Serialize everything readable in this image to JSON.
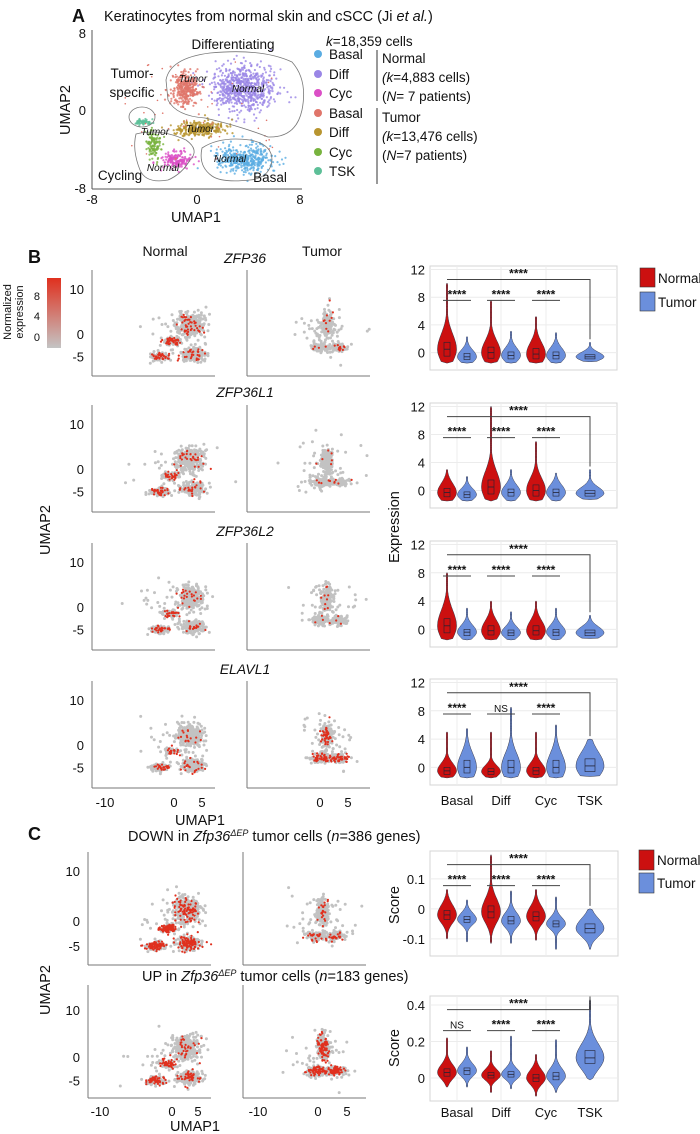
{
  "panel_a": {
    "letter": "A",
    "title": {
      "pre": "Keratinocytes from normal skin and cSCC (Ji ",
      "italic": "et al.",
      "post": ")"
    },
    "xlabel": "UMAP1",
    "ylabel": "UMAP2",
    "x_ticks": [
      "-8",
      "0",
      "8"
    ],
    "y_ticks": [
      "8",
      "0",
      "-8"
    ],
    "region_labels": {
      "differentiating": "Differentiating",
      "tumor_specific_1": "Tumor-",
      "tumor_specific_2": "specific",
      "cycling": "Cycling",
      "basal": "Basal"
    },
    "cluster_labels": {
      "tumor": "Tumor",
      "normal": "Normal"
    },
    "total_cells": {
      "var": "k",
      "value": "=18,359 cells"
    },
    "legend": [
      {
        "label": "Basal",
        "color": "#5aace2"
      },
      {
        "label": "Diff",
        "color": "#9a86e6"
      },
      {
        "label": "Cyc",
        "color": "#db4fc6"
      },
      {
        "label": "Basal",
        "color": "#e0756a"
      },
      {
        "label": "Diff",
        "color": "#b89530"
      },
      {
        "label": "Cyc",
        "color": "#78b33e"
      },
      {
        "label": "TSK",
        "color": "#5dbf98"
      }
    ],
    "groups": [
      {
        "name": "Normal",
        "cells_open": "(",
        "cells_var": "k",
        "cells_value": "=4,883 cells)",
        "patients_open": "(",
        "patients_var": "N",
        "patients_value": "= 7 patients)"
      },
      {
        "name": "Tumor",
        "cells_open": "(",
        "cells_var": "k",
        "cells_value": "=13,476 cells)",
        "patients_open": "(",
        "patients_var": "N",
        "patients_value": "=7 patients)"
      }
    ]
  },
  "panel_b": {
    "letter": "B",
    "col_normal": "Normal",
    "col_tumor": "Tumor",
    "colorbar": {
      "title_1": "Normalized",
      "title_2": "expression",
      "ticks": [
        "8",
        "4",
        "0"
      ],
      "low_color": "#c4c4c4",
      "high_color": "#e0301e"
    },
    "genes": [
      "ZFP36",
      "ZFP36L1",
      "ZFP36L2",
      "ELAVL1"
    ],
    "umap_y_ticks": [
      "10",
      "0",
      "-5"
    ],
    "umap_x_ticks_normal": [
      "-10",
      "0",
      "5"
    ],
    "umap_x_ticks_tumor": [
      "0",
      "5"
    ],
    "xlabel": "UMAP1",
    "ylabel": "UMAP2",
    "violin_ylabel": "Expression",
    "categories": [
      "Basal",
      "Diff",
      "Cyc",
      "TSK"
    ],
    "legend": [
      {
        "label": "Normal",
        "color": "#cc1010"
      },
      {
        "label": "Tumor",
        "color": "#6b8fdc"
      }
    ]
  },
  "panel_c": {
    "letter": "C",
    "down_title": {
      "pre": "DOWN in ",
      "gene": "Zfp36",
      "sup": "ΔEP",
      "mid": " tumor cells (",
      "var": "n",
      "post": "=386 genes)"
    },
    "up_title": {
      "pre": "UP in ",
      "gene": "Zfp36",
      "sup": "ΔEP",
      "mid": " tumor cells (",
      "var": "n",
      "post": "=183 genes)"
    },
    "umap_y_ticks": [
      "10",
      "0",
      "-5"
    ],
    "umap_x_ticks_normal": [
      "-10",
      "0",
      "5"
    ],
    "umap_x_ticks_tumor": [
      "-10",
      "0",
      "5"
    ],
    "xlabel": "UMAP1",
    "ylabel": "UMAP2",
    "violin_ylabel": "Score",
    "categories": [
      "Basal",
      "Diff",
      "Cyc",
      "TSK"
    ],
    "legend": [
      {
        "label": "Normal",
        "color": "#cc1010"
      },
      {
        "label": "Tumor",
        "color": "#6b8fdc"
      }
    ]
  },
  "chart_data": [
    {
      "type": "scatter",
      "panel": "A",
      "title": "Keratinocytes from normal skin and cSCC (Ji et al.)",
      "xlabel": "UMAP1",
      "ylabel": "UMAP2",
      "xlim": [
        -8,
        8
      ],
      "ylim": [
        -8,
        8
      ],
      "legend": "right",
      "series": [
        {
          "name": "Normal Basal",
          "color": "#5aace2"
        },
        {
          "name": "Normal Diff",
          "color": "#9a86e6"
        },
        {
          "name": "Normal Cyc",
          "color": "#db4fc6"
        },
        {
          "name": "Tumor Basal",
          "color": "#e0756a"
        },
        {
          "name": "Tumor Diff",
          "color": "#b89530"
        },
        {
          "name": "Tumor Cyc",
          "color": "#78b33e"
        },
        {
          "name": "Tumor TSK",
          "color": "#5dbf98"
        }
      ]
    },
    {
      "type": "violin",
      "panel": "B",
      "title": "ZFP36",
      "ylabel": "Expression",
      "ylim": [
        -2.5,
        12.5
      ],
      "yticks": [
        "0",
        "4",
        "8",
        "12"
      ],
      "categories": [
        "Basal",
        "Diff",
        "Cyc",
        "TSK"
      ],
      "series": [
        {
          "name": "Normal",
          "values": [
            {
              "median": 0.5,
              "q1": -0.5,
              "q3": 1.5,
              "min": -1.5,
              "max": 10
            },
            {
              "median": 0,
              "q1": -0.8,
              "q3": 0.8,
              "min": -1.5,
              "max": 7.5
            },
            {
              "median": -0.2,
              "q1": -0.9,
              "q3": 0.6,
              "min": -1.5,
              "max": 5.2
            },
            null
          ]
        },
        {
          "name": "Tumor",
          "values": [
            {
              "median": -0.6,
              "q1": -1,
              "q3": -0.1,
              "min": -1.5,
              "max": 2.3
            },
            {
              "median": -0.4,
              "q1": -0.9,
              "q3": 0.1,
              "min": -1.5,
              "max": 3.1
            },
            {
              "median": -0.4,
              "q1": -0.9,
              "q3": 0.1,
              "min": -1.5,
              "max": 2.9
            },
            {
              "median": -0.6,
              "q1": -0.9,
              "q3": -0.3,
              "min": -1.3,
              "max": 1.5
            }
          ]
        }
      ],
      "significance": {
        "pairs": [
          "****",
          "****",
          "****"
        ],
        "overall": "****"
      }
    },
    {
      "type": "violin",
      "panel": "B",
      "title": "ZFP36L1",
      "ylabel": "Expression",
      "ylim": [
        -2.5,
        12.5
      ],
      "yticks": [
        "0",
        "4",
        "8",
        "12"
      ],
      "categories": [
        "Basal",
        "Diff",
        "Cyc",
        "TSK"
      ],
      "series": [
        {
          "name": "Normal",
          "values": [
            {
              "median": -0.3,
              "q1": -0.9,
              "q3": 0.3,
              "min": -1.5,
              "max": 3
            },
            {
              "median": 0.5,
              "q1": -0.5,
              "q3": 1.5,
              "min": -1.5,
              "max": 12
            },
            {
              "median": 0,
              "q1": -0.8,
              "q3": 0.8,
              "min": -1.5,
              "max": 7
            },
            null
          ]
        },
        {
          "name": "Tumor",
          "values": [
            {
              "median": -0.6,
              "q1": -1,
              "q3": -0.2,
              "min": -1.5,
              "max": 2
            },
            {
              "median": -0.3,
              "q1": -0.8,
              "q3": 0.2,
              "min": -1.5,
              "max": 3
            },
            {
              "median": -0.3,
              "q1": -0.8,
              "q3": 0.2,
              "min": -1.5,
              "max": 2.5
            },
            {
              "median": -0.4,
              "q1": -0.8,
              "q3": 0,
              "min": -1.3,
              "max": 3
            }
          ]
        }
      ],
      "significance": {
        "pairs": [
          "****",
          "****",
          "****"
        ],
        "overall": "****"
      }
    },
    {
      "type": "violin",
      "panel": "B",
      "title": "ZFP36L2",
      "ylabel": "Expression",
      "ylim": [
        -2.5,
        12.5
      ],
      "yticks": [
        "0",
        "4",
        "8",
        "12"
      ],
      "categories": [
        "Basal",
        "Diff",
        "Cyc",
        "TSK"
      ],
      "series": [
        {
          "name": "Normal",
          "values": [
            {
              "median": 0.5,
              "q1": -0.5,
              "q3": 1.5,
              "min": -1.5,
              "max": 8
            },
            {
              "median": -0.2,
              "q1": -0.8,
              "q3": 0.5,
              "min": -1.5,
              "max": 4
            },
            {
              "median": -0.2,
              "q1": -0.8,
              "q3": 0.5,
              "min": -1.5,
              "max": 4
            },
            null
          ]
        },
        {
          "name": "Tumor",
          "values": [
            {
              "median": -0.4,
              "q1": -0.9,
              "q3": 0,
              "min": -1.5,
              "max": 3
            },
            {
              "median": -0.5,
              "q1": -0.9,
              "q3": -0.1,
              "min": -1.5,
              "max": 2.5
            },
            {
              "median": -0.4,
              "q1": -0.9,
              "q3": 0,
              "min": -1.5,
              "max": 3
            },
            {
              "median": -0.5,
              "q1": -0.9,
              "q3": -0.1,
              "min": -1.3,
              "max": 2
            }
          ]
        }
      ],
      "significance": {
        "pairs": [
          "****",
          "****",
          "****"
        ],
        "overall": "****"
      }
    },
    {
      "type": "violin",
      "panel": "B",
      "title": "ELAVL1",
      "ylabel": "Expression",
      "ylim": [
        -2.5,
        12.5
      ],
      "yticks": [
        "0",
        "4",
        "8",
        "12"
      ],
      "categories": [
        "Basal",
        "Diff",
        "Cyc",
        "TSK"
      ],
      "series": [
        {
          "name": "Normal",
          "values": [
            {
              "median": -0.5,
              "q1": -1,
              "q3": 0,
              "min": -1.5,
              "max": 5
            },
            {
              "median": -0.6,
              "q1": -1,
              "q3": -0.2,
              "min": -1.5,
              "max": 5
            },
            {
              "median": -0.5,
              "q1": -1,
              "q3": 0,
              "min": -1.5,
              "max": 5
            },
            null
          ]
        },
        {
          "name": "Tumor",
          "values": [
            {
              "median": 0,
              "q1": -0.8,
              "q3": 1,
              "min": -1.5,
              "max": 5.5
            },
            {
              "median": 0,
              "q1": -0.8,
              "q3": 1,
              "min": -1.5,
              "max": 8.5
            },
            {
              "median": 0,
              "q1": -0.8,
              "q3": 1,
              "min": -1.5,
              "max": 6
            },
            {
              "median": 0.2,
              "q1": -0.6,
              "q3": 1.2,
              "min": -1.3,
              "max": 4
            }
          ]
        }
      ],
      "significance": {
        "pairs": [
          "****",
          "NS",
          "****"
        ],
        "overall": "****"
      }
    },
    {
      "type": "violin",
      "panel": "C",
      "title": "DOWN in Zfp36ΔEP tumor cells (n=386 genes)",
      "ylabel": "Score",
      "ylim": [
        -0.157,
        0.193
      ],
      "yticks": [
        "-0.1",
        "0",
        "0.1"
      ],
      "categories": [
        "Basal",
        "Diff",
        "Cyc",
        "TSK"
      ],
      "series": [
        {
          "name": "Normal",
          "values": [
            {
              "median": -0.02,
              "q1": -0.035,
              "q3": -0.005,
              "min": -0.1,
              "max": 0.065
            },
            {
              "median": -0.01,
              "q1": -0.03,
              "q3": 0.01,
              "min": -0.115,
              "max": 0.18
            },
            {
              "median": -0.025,
              "q1": -0.04,
              "q3": -0.01,
              "min": -0.105,
              "max": 0.065
            },
            null
          ]
        },
        {
          "name": "Tumor",
          "values": [
            {
              "median": -0.035,
              "q1": -0.045,
              "q3": -0.025,
              "min": -0.11,
              "max": 0.03
            },
            {
              "median": -0.04,
              "q1": -0.05,
              "q3": -0.025,
              "min": -0.115,
              "max": 0.06
            },
            {
              "median": -0.05,
              "q1": -0.06,
              "q3": -0.04,
              "min": -0.135,
              "max": 0.04
            },
            {
              "median": -0.065,
              "q1": -0.08,
              "q3": -0.05,
              "min": -0.135,
              "max": 0.0
            }
          ]
        }
      ],
      "significance": {
        "pairs": [
          "****",
          "****",
          "****"
        ],
        "overall": "****"
      }
    },
    {
      "type": "violin",
      "panel": "C",
      "title": "UP in Zfp36ΔEP tumor cells (n=183 genes)",
      "ylabel": "Score",
      "ylim": [
        -0.126,
        0.449
      ],
      "yticks": [
        "0",
        "0.2",
        "0.4"
      ],
      "categories": [
        "Basal",
        "Diff",
        "Cyc",
        "TSK"
      ],
      "series": [
        {
          "name": "Normal",
          "values": [
            {
              "median": 0.03,
              "q1": 0.01,
              "q3": 0.05,
              "min": -0.05,
              "max": 0.22
            },
            {
              "median": 0.015,
              "q1": 0,
              "q3": 0.03,
              "min": -0.08,
              "max": 0.15
            },
            {
              "median": 0,
              "q1": -0.02,
              "q3": 0.02,
              "min": -0.1,
              "max": 0.13
            },
            null
          ]
        },
        {
          "name": "Tumor",
          "values": [
            {
              "median": 0.04,
              "q1": 0.02,
              "q3": 0.055,
              "min": -0.05,
              "max": 0.17
            },
            {
              "median": 0.02,
              "q1": 0.005,
              "q3": 0.035,
              "min": -0.06,
              "max": 0.23
            },
            {
              "median": 0.01,
              "q1": -0.01,
              "q3": 0.03,
              "min": -0.08,
              "max": 0.21
            },
            {
              "median": 0.11,
              "q1": 0.08,
              "q3": 0.15,
              "min": -0.01,
              "max": 0.43
            }
          ]
        }
      ],
      "significance": {
        "pairs": [
          "NS",
          "****",
          "****"
        ],
        "overall": "****"
      }
    }
  ]
}
